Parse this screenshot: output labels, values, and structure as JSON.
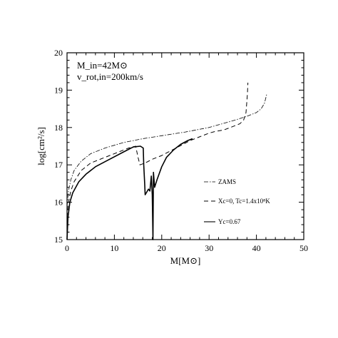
{
  "chart_data": {
    "type": "line",
    "title": "",
    "xlabel": "M[M⊙]",
    "ylabel": "log[cm²/s]",
    "xlim": [
      0,
      50
    ],
    "ylim": [
      15,
      20
    ],
    "x_ticks": [
      "0",
      "10",
      "20",
      "30",
      "40",
      "50"
    ],
    "y_ticks": [
      "15",
      "16",
      "17",
      "18",
      "19",
      "20"
    ],
    "grid": false,
    "legend_position": "bottom-right",
    "annotations": {
      "line1": "M_in=42M⊙",
      "line2": "v_rot,in=200km/s"
    },
    "series": [
      {
        "name": "ZAMS",
        "style": "dash-dot",
        "points": [
          [
            0,
            15.9
          ],
          [
            0.3,
            16.3
          ],
          [
            0.8,
            16.6
          ],
          [
            1.5,
            16.85
          ],
          [
            3,
            17.1
          ],
          [
            5,
            17.3
          ],
          [
            8,
            17.45
          ],
          [
            12,
            17.6
          ],
          [
            16,
            17.7
          ],
          [
            20,
            17.78
          ],
          [
            25,
            17.88
          ],
          [
            30,
            18.0
          ],
          [
            35,
            18.18
          ],
          [
            38,
            18.3
          ],
          [
            40,
            18.4
          ],
          [
            41,
            18.5
          ],
          [
            41.7,
            18.65
          ],
          [
            42.2,
            18.9
          ]
        ]
      },
      {
        "name": "Xc=0, Tc=1.4x10⁸K",
        "style": "dashed",
        "points": [
          [
            0,
            15.6
          ],
          [
            0.3,
            16.0
          ],
          [
            0.8,
            16.3
          ],
          [
            1.5,
            16.55
          ],
          [
            3,
            16.85
          ],
          [
            5,
            17.05
          ],
          [
            8,
            17.2
          ],
          [
            11,
            17.35
          ],
          [
            13,
            17.45
          ],
          [
            14.5,
            17.5
          ],
          [
            15,
            17.2
          ],
          [
            15.4,
            17.0
          ],
          [
            16.5,
            17.05
          ],
          [
            18,
            17.15
          ],
          [
            20,
            17.25
          ],
          [
            23,
            17.45
          ],
          [
            26,
            17.65
          ],
          [
            28,
            17.75
          ],
          [
            30,
            17.85
          ],
          [
            31.5,
            17.9
          ],
          [
            33,
            17.93
          ],
          [
            34.5,
            18.0
          ],
          [
            35.5,
            18.05
          ],
          [
            36.5,
            18.1
          ],
          [
            37.3,
            18.2
          ],
          [
            37.8,
            18.4
          ],
          [
            38.1,
            18.9
          ],
          [
            38.2,
            19.2
          ]
        ]
      },
      {
        "name": "Yc=0.67",
        "style": "solid",
        "points": [
          [
            0,
            15.0
          ],
          [
            0.2,
            15.6
          ],
          [
            0.6,
            16.0
          ],
          [
            1.2,
            16.25
          ],
          [
            2.5,
            16.55
          ],
          [
            4,
            16.75
          ],
          [
            6,
            16.95
          ],
          [
            9,
            17.15
          ],
          [
            12,
            17.35
          ],
          [
            14,
            17.48
          ],
          [
            15.5,
            17.5
          ],
          [
            16.1,
            17.45
          ],
          [
            16.2,
            17.0
          ],
          [
            16.4,
            16.5
          ],
          [
            16.5,
            16.2
          ],
          [
            17.2,
            16.35
          ],
          [
            17.5,
            16.3
          ],
          [
            17.8,
            16.7
          ],
          [
            18.0,
            16.2
          ],
          [
            18.15,
            15.0
          ],
          [
            18.25,
            16.8
          ],
          [
            18.5,
            16.4
          ],
          [
            19.0,
            16.6
          ],
          [
            20,
            16.95
          ],
          [
            21,
            17.2
          ],
          [
            22.5,
            17.4
          ],
          [
            24,
            17.55
          ],
          [
            25.5,
            17.65
          ],
          [
            26.5,
            17.7
          ]
        ]
      }
    ]
  }
}
